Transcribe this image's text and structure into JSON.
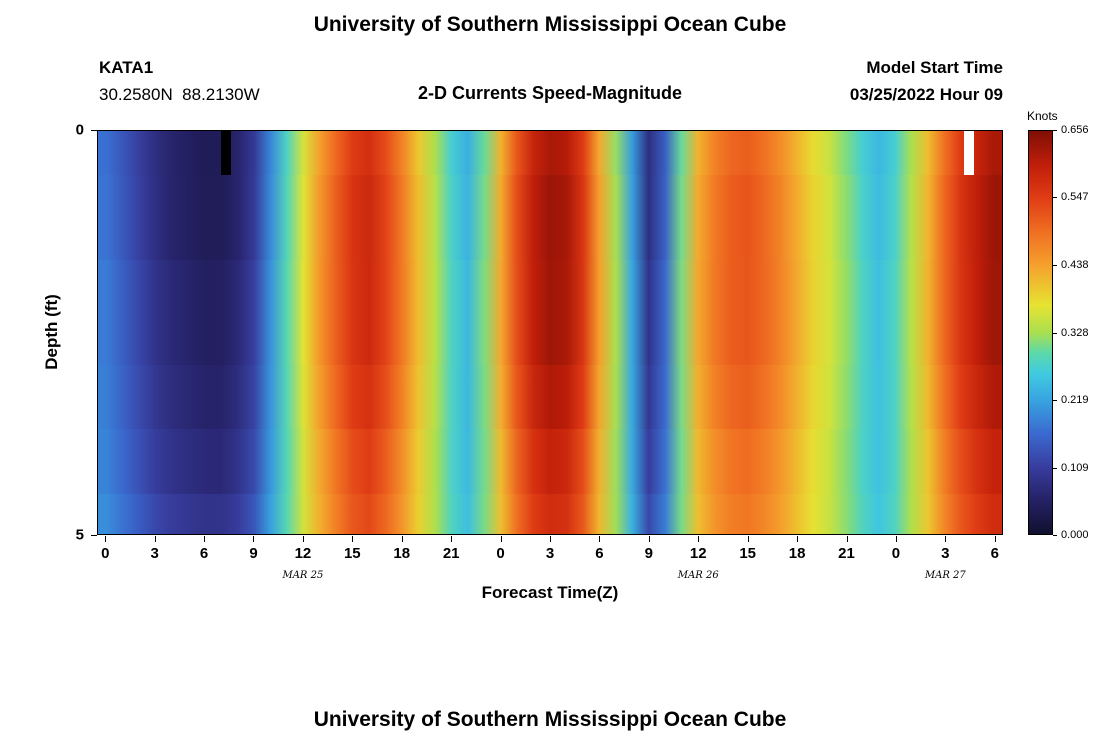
{
  "header": {
    "title": "University of Southern Mississippi Ocean Cube",
    "station_id": "KATA1",
    "station_coords": "30.2580N  88.2130W",
    "subtitle": "2-D Currents Speed-Magnitude",
    "model_start_label": "Model Start Time",
    "model_start_value": "03/25/2022 Hour 09"
  },
  "footer": {
    "next_title": "University of Southern Mississippi Ocean Cube"
  },
  "chart_data": {
    "type": "heatmap",
    "title": "2-D Currents Speed-Magnitude",
    "xlabel": "Forecast Time(Z)",
    "ylabel": "Depth (ft)",
    "colorbar_label": "Knots",
    "colorbar_ticks": [
      "0.656",
      "0.547",
      "0.438",
      "0.328",
      "0.219",
      "0.109",
      "0.000"
    ],
    "value_range": [
      0,
      0.656
    ],
    "depth_range": [
      0,
      5
    ],
    "x_ticks": [
      {
        "hour": 0,
        "label": "0"
      },
      {
        "hour": 3,
        "label": "3"
      },
      {
        "hour": 6,
        "label": "6"
      },
      {
        "hour": 9,
        "label": "9"
      },
      {
        "hour": 12,
        "label": "12"
      },
      {
        "hour": 15,
        "label": "15"
      },
      {
        "hour": 18,
        "label": "18"
      },
      {
        "hour": 21,
        "label": "21"
      },
      {
        "hour": 24,
        "label": "0"
      },
      {
        "hour": 27,
        "label": "3"
      },
      {
        "hour": 30,
        "label": "6"
      },
      {
        "hour": 33,
        "label": "9"
      },
      {
        "hour": 36,
        "label": "12"
      },
      {
        "hour": 39,
        "label": "15"
      },
      {
        "hour": 42,
        "label": "18"
      },
      {
        "hour": 45,
        "label": "21"
      },
      {
        "hour": 48,
        "label": "0"
      },
      {
        "hour": 51,
        "label": "3"
      },
      {
        "hour": 54,
        "label": "6"
      }
    ],
    "date_labels": [
      {
        "hour": 12,
        "label": "MAR 25"
      },
      {
        "hour": 36,
        "label": "MAR 26"
      },
      {
        "hour": 51,
        "label": "MAR 27"
      }
    ],
    "y_ticks": [
      {
        "depth": 0,
        "label": "0"
      },
      {
        "depth": 5,
        "label": "5"
      }
    ],
    "speed_surface_knots": [
      0.17,
      0.14,
      0.11,
      0.08,
      0.06,
      0.05,
      0.04,
      0.04,
      0.06,
      0.1,
      0.19,
      0.28,
      0.36,
      0.44,
      0.5,
      0.55,
      0.57,
      0.53,
      0.47,
      0.4,
      0.33,
      0.27,
      0.23,
      0.3,
      0.42,
      0.52,
      0.59,
      0.62,
      0.61,
      0.55,
      0.43,
      0.32,
      0.21,
      0.08,
      0.15,
      0.3,
      0.42,
      0.47,
      0.5,
      0.51,
      0.49,
      0.46,
      0.42,
      0.38,
      0.35,
      0.31,
      0.27,
      0.24,
      0.27,
      0.33,
      0.41,
      0.49,
      0.55,
      0.59,
      0.62
    ],
    "depth_row_boundaries_ft": [
      0,
      0.55,
      1.6,
      2.9,
      3.7,
      4.5,
      5.0
    ],
    "depth_factors": [
      1.0,
      1.02,
      1.0,
      0.96,
      0.9,
      0.84
    ],
    "depth_offsets_knots": [
      0,
      0,
      0.01,
      0.02,
      0.035,
      0.055
    ],
    "colormap_stops": [
      {
        "v": 0.0,
        "c": "#10102e"
      },
      {
        "v": 0.055,
        "c": "#252166"
      },
      {
        "v": 0.109,
        "c": "#383d9e"
      },
      {
        "v": 0.164,
        "c": "#3a6ad0"
      },
      {
        "v": 0.219,
        "c": "#38a5e0"
      },
      {
        "v": 0.262,
        "c": "#40cbe0"
      },
      {
        "v": 0.295,
        "c": "#5cd9a8"
      },
      {
        "v": 0.328,
        "c": "#aadf4e"
      },
      {
        "v": 0.372,
        "c": "#e6e332"
      },
      {
        "v": 0.438,
        "c": "#f5a02d"
      },
      {
        "v": 0.49,
        "c": "#f07022"
      },
      {
        "v": 0.547,
        "c": "#e03c15"
      },
      {
        "v": 0.6,
        "c": "#c01e0a"
      },
      {
        "v": 0.656,
        "c": "#800f04"
      }
    ],
    "markers": [
      {
        "hour": 7.3,
        "width_hours": 0.6,
        "color": "#000000"
      },
      {
        "hour": 52.5,
        "width_hours": 0.6,
        "color": "#ffffff"
      }
    ]
  }
}
